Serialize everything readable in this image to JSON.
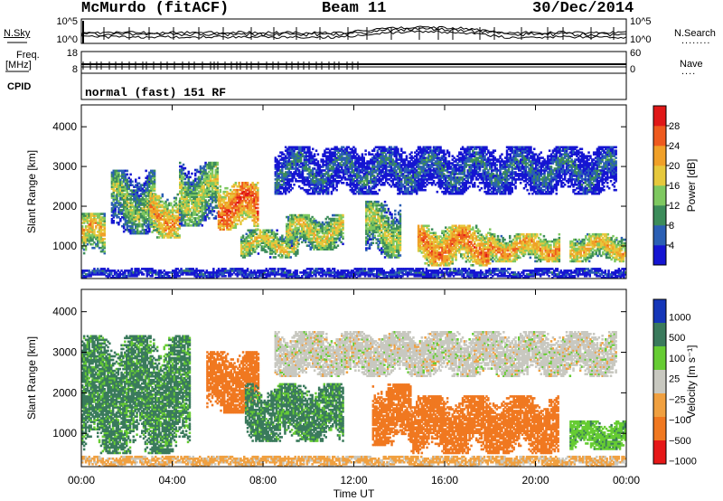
{
  "header": {
    "station": "McMurdo (fitACF)",
    "beam": "Beam 11",
    "date": "30/Dec/2014"
  },
  "side_labels": {
    "nsky": "N.Sky",
    "freq": "Freq.",
    "mhz": "[MHz]",
    "cpid": "CPID",
    "nsearch": "N.Search",
    "nave": "Nave",
    "nsearch_dots": "........",
    "nave_dots": "...."
  },
  "top_axes": {
    "noise_left_ticks": [
      "10^5",
      "10^0"
    ],
    "noise_right_ticks": [
      "10^5",
      "10^0"
    ],
    "freq_left_ticks": [
      "18",
      "8"
    ],
    "freq_right_ticks": [
      "60",
      "0"
    ]
  },
  "cpid_text": "normal (fast) 151 RF",
  "xaxis": {
    "label": "Time UT",
    "ticks": [
      "00:00",
      "04:00",
      "08:00",
      "12:00",
      "16:00",
      "20:00",
      "00:00"
    ]
  },
  "colors": {
    "power": [
      "#1515d2",
      "#2b5fb4",
      "#3c8c5a",
      "#7ec860",
      "#e6c83c",
      "#f0a028",
      "#ee5a1e",
      "#e01818"
    ],
    "velocity": [
      "#1536b8",
      "#3a7a5c",
      "#66cc33",
      "#c8c8c0",
      "#f0a040",
      "#f07820",
      "#e61818"
    ]
  },
  "chart_data": [
    {
      "type": "heatmap",
      "ylabel": "Slant Range [km]",
      "yticks": [
        1000,
        2000,
        3000,
        4000
      ],
      "ylim": [
        180,
        4550
      ],
      "xlim": [
        0,
        24
      ],
      "colorbar": {
        "label": "Power [dB]",
        "ticks": [
          "4",
          "8",
          "12",
          "16",
          "20",
          "24",
          "28"
        ],
        "range": [
          0,
          30
        ]
      },
      "features": [
        {
          "t0": 0.0,
          "t1": 1.0,
          "r0": 800,
          "r1": 1800,
          "value": 20
        },
        {
          "t0": 1.3,
          "t1": 3.2,
          "r0": 1300,
          "r1": 2900,
          "value": 14
        },
        {
          "t0": 3.0,
          "t1": 4.3,
          "r0": 1200,
          "r1": 2300,
          "value": 22
        },
        {
          "t0": 4.3,
          "t1": 6.0,
          "r0": 1500,
          "r1": 3100,
          "value": 16
        },
        {
          "t0": 6.0,
          "t1": 7.8,
          "r0": 1400,
          "r1": 2600,
          "value": 26
        },
        {
          "t0": 7.0,
          "t1": 9.5,
          "r0": 700,
          "r1": 1400,
          "value": 18
        },
        {
          "t0": 9.0,
          "t1": 11.5,
          "r0": 900,
          "r1": 1800,
          "value": 18
        },
        {
          "t0": 12.5,
          "t1": 14.0,
          "r0": 700,
          "r1": 2100,
          "value": 16
        },
        {
          "t0": 14.8,
          "t1": 18.0,
          "r0": 500,
          "r1": 1500,
          "value": 24
        },
        {
          "t0": 18.0,
          "t1": 21.0,
          "r0": 600,
          "r1": 1300,
          "value": 22
        },
        {
          "t0": 21.5,
          "t1": 24.0,
          "r0": 600,
          "r1": 1300,
          "value": 20
        },
        {
          "t0": 8.5,
          "t1": 23.5,
          "r0": 2300,
          "r1": 3500,
          "value": 8
        },
        {
          "t0": 0.0,
          "t1": 24.0,
          "r0": 180,
          "r1": 420,
          "value": 6
        }
      ]
    },
    {
      "type": "heatmap",
      "ylabel": "Slant Range [km]",
      "yticks": [
        1000,
        2000,
        3000,
        4000
      ],
      "ylim": [
        180,
        4550
      ],
      "xlim": [
        0,
        24
      ],
      "colorbar": {
        "label": "Velocity [m s⁻¹]",
        "ticks": [
          "1000",
          "500",
          "100",
          "25",
          "−25",
          "−100",
          "−500",
          "−1000"
        ]
      },
      "features": [
        {
          "t0": 0.0,
          "t1": 4.8,
          "r0": 500,
          "r1": 3400,
          "value": 120
        },
        {
          "t0": 5.5,
          "t1": 7.8,
          "r0": 1500,
          "r1": 3000,
          "value": -150
        },
        {
          "t0": 7.2,
          "t1": 11.5,
          "r0": 800,
          "r1": 2200,
          "value": 120
        },
        {
          "t0": 8.5,
          "t1": 23.5,
          "r0": 2400,
          "r1": 3500,
          "value": 0
        },
        {
          "t0": 12.8,
          "t1": 14.5,
          "r0": 700,
          "r1": 2200,
          "value": -150
        },
        {
          "t0": 14.5,
          "t1": 21.0,
          "r0": 500,
          "r1": 1900,
          "value": -150
        },
        {
          "t0": 21.5,
          "t1": 24.0,
          "r0": 600,
          "r1": 1300,
          "value": 80
        },
        {
          "t0": 0.0,
          "t1": 24.0,
          "r0": 180,
          "r1": 450,
          "value": -40
        }
      ]
    }
  ]
}
